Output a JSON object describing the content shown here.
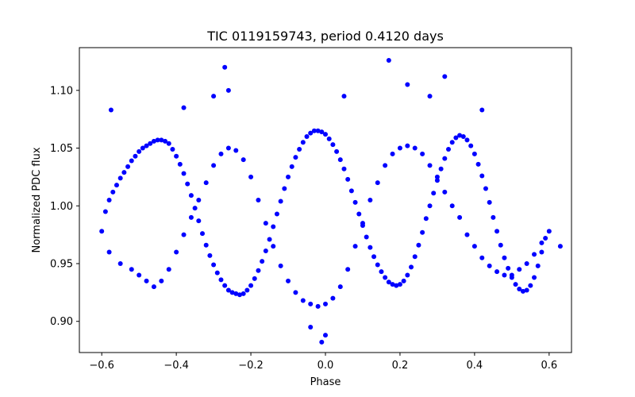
{
  "chart_data": {
    "type": "scatter",
    "title": "TIC 0119159743, period 0.4120 days",
    "xlabel": "Phase",
    "ylabel": "Normalized PDC flux",
    "xlim": [
      -0.66,
      0.66
    ],
    "ylim": [
      0.873,
      1.137
    ],
    "xticks": [
      -0.6,
      -0.4,
      -0.2,
      0.0,
      0.2,
      0.4,
      0.6
    ],
    "xtick_labels": [
      "−0.6",
      "−0.4",
      "−0.2",
      "0.0",
      "0.2",
      "0.4",
      "0.6"
    ],
    "yticks": [
      0.9,
      0.95,
      1.0,
      1.05,
      1.1
    ],
    "ytick_labels": [
      "0.90",
      "0.95",
      "1.00",
      "1.05",
      "1.10"
    ],
    "grid": false,
    "legend": "none",
    "marker_color": "#0000ff",
    "series": [
      {
        "points": [
          [
            -0.6,
            0.978
          ],
          [
            -0.59,
            0.995
          ],
          [
            -0.58,
            1.005
          ],
          [
            -0.57,
            1.012
          ],
          [
            -0.56,
            1.018
          ],
          [
            -0.55,
            1.024
          ],
          [
            -0.54,
            1.029
          ],
          [
            -0.53,
            1.034
          ],
          [
            -0.52,
            1.039
          ],
          [
            -0.51,
            1.043
          ],
          [
            -0.5,
            1.047
          ],
          [
            -0.49,
            1.05
          ],
          [
            -0.48,
            1.052
          ],
          [
            -0.47,
            1.054
          ],
          [
            -0.46,
            1.056
          ],
          [
            -0.45,
            1.057
          ],
          [
            -0.44,
            1.057
          ],
          [
            -0.43,
            1.056
          ],
          [
            -0.42,
            1.054
          ],
          [
            -0.41,
            1.049
          ],
          [
            -0.4,
            1.043
          ],
          [
            -0.39,
            1.036
          ],
          [
            -0.38,
            1.028
          ],
          [
            -0.37,
            1.019
          ],
          [
            -0.36,
            1.009
          ],
          [
            -0.35,
            0.998
          ],
          [
            -0.34,
            0.987
          ],
          [
            -0.33,
            0.976
          ],
          [
            -0.32,
            0.966
          ],
          [
            -0.31,
            0.957
          ],
          [
            -0.3,
            0.949
          ],
          [
            -0.29,
            0.942
          ],
          [
            -0.28,
            0.936
          ],
          [
            -0.27,
            0.931
          ],
          [
            -0.26,
            0.927
          ],
          [
            -0.25,
            0.925
          ],
          [
            -0.24,
            0.924
          ],
          [
            -0.23,
            0.923
          ],
          [
            -0.22,
            0.924
          ],
          [
            -0.21,
            0.927
          ],
          [
            -0.2,
            0.931
          ],
          [
            -0.19,
            0.937
          ],
          [
            -0.18,
            0.944
          ],
          [
            -0.17,
            0.952
          ],
          [
            -0.16,
            0.961
          ],
          [
            -0.15,
            0.971
          ],
          [
            -0.14,
            0.982
          ],
          [
            -0.13,
            0.993
          ],
          [
            -0.12,
            1.004
          ],
          [
            -0.11,
            1.015
          ],
          [
            -0.1,
            1.025
          ],
          [
            -0.09,
            1.034
          ],
          [
            -0.08,
            1.042
          ],
          [
            -0.07,
            1.049
          ],
          [
            -0.06,
            1.055
          ],
          [
            -0.05,
            1.06
          ],
          [
            -0.04,
            1.063
          ],
          [
            -0.03,
            1.065
          ],
          [
            -0.02,
            1.065
          ],
          [
            -0.01,
            1.064
          ],
          [
            0.0,
            1.062
          ],
          [
            0.01,
            1.058
          ],
          [
            0.02,
            1.053
          ],
          [
            0.03,
            1.047
          ],
          [
            0.04,
            1.04
          ],
          [
            0.05,
            1.032
          ],
          [
            0.06,
            1.023
          ],
          [
            0.07,
            1.013
          ],
          [
            0.08,
            1.003
          ],
          [
            0.09,
            0.993
          ],
          [
            0.1,
            0.983
          ],
          [
            0.11,
            0.973
          ],
          [
            0.12,
            0.964
          ],
          [
            0.13,
            0.956
          ],
          [
            0.14,
            0.949
          ],
          [
            0.15,
            0.943
          ],
          [
            0.16,
            0.938
          ],
          [
            0.17,
            0.934
          ],
          [
            0.18,
            0.932
          ],
          [
            0.19,
            0.931
          ],
          [
            0.2,
            0.932
          ],
          [
            0.21,
            0.935
          ],
          [
            0.22,
            0.94
          ],
          [
            0.23,
            0.947
          ],
          [
            0.24,
            0.956
          ],
          [
            0.25,
            0.966
          ],
          [
            0.26,
            0.977
          ],
          [
            0.27,
            0.989
          ],
          [
            0.28,
            1.0
          ],
          [
            0.29,
            1.011
          ],
          [
            0.3,
            1.022
          ],
          [
            0.31,
            1.032
          ],
          [
            0.32,
            1.041
          ],
          [
            0.33,
            1.049
          ],
          [
            0.34,
            1.055
          ],
          [
            0.35,
            1.059
          ],
          [
            0.36,
            1.061
          ],
          [
            0.37,
            1.06
          ],
          [
            0.38,
            1.057
          ],
          [
            0.39,
            1.052
          ],
          [
            0.4,
            1.045
          ],
          [
            0.41,
            1.036
          ],
          [
            0.42,
            1.026
          ],
          [
            0.43,
            1.015
          ],
          [
            0.44,
            1.003
          ],
          [
            0.45,
            0.99
          ],
          [
            0.46,
            0.978
          ],
          [
            0.47,
            0.966
          ],
          [
            0.48,
            0.955
          ],
          [
            0.49,
            0.946
          ],
          [
            0.5,
            0.938
          ],
          [
            0.51,
            0.932
          ],
          [
            0.52,
            0.928
          ],
          [
            0.53,
            0.926
          ],
          [
            0.54,
            0.927
          ],
          [
            0.55,
            0.931
          ],
          [
            0.56,
            0.938
          ],
          [
            0.57,
            0.948
          ],
          [
            0.58,
            0.96
          ],
          [
            0.59,
            0.972
          ],
          [
            0.6,
            0.978
          ],
          [
            -0.58,
            0.96
          ],
          [
            -0.55,
            0.95
          ],
          [
            -0.52,
            0.945
          ],
          [
            -0.5,
            0.94
          ],
          [
            -0.48,
            0.935
          ],
          [
            -0.46,
            0.93
          ],
          [
            -0.44,
            0.935
          ],
          [
            -0.42,
            0.945
          ],
          [
            -0.4,
            0.96
          ],
          [
            -0.38,
            0.975
          ],
          [
            -0.36,
            0.99
          ],
          [
            -0.34,
            1.005
          ],
          [
            -0.32,
            1.02
          ],
          [
            -0.3,
            1.035
          ],
          [
            -0.28,
            1.045
          ],
          [
            -0.26,
            1.05
          ],
          [
            -0.24,
            1.048
          ],
          [
            -0.22,
            1.04
          ],
          [
            -0.2,
            1.025
          ],
          [
            -0.18,
            1.005
          ],
          [
            -0.16,
            0.985
          ],
          [
            -0.14,
            0.965
          ],
          [
            -0.12,
            0.948
          ],
          [
            -0.1,
            0.935
          ],
          [
            -0.08,
            0.925
          ],
          [
            -0.06,
            0.918
          ],
          [
            -0.04,
            0.915
          ],
          [
            -0.02,
            0.913
          ],
          [
            0.0,
            0.915
          ],
          [
            0.02,
            0.92
          ],
          [
            0.04,
            0.93
          ],
          [
            0.06,
            0.945
          ],
          [
            0.08,
            0.965
          ],
          [
            0.1,
            0.985
          ],
          [
            0.12,
            1.005
          ],
          [
            0.14,
            1.02
          ],
          [
            0.16,
            1.035
          ],
          [
            0.18,
            1.045
          ],
          [
            0.2,
            1.05
          ],
          [
            0.22,
            1.052
          ],
          [
            0.24,
            1.05
          ],
          [
            0.26,
            1.045
          ],
          [
            0.28,
            1.035
          ],
          [
            0.3,
            1.025
          ],
          [
            0.32,
            1.012
          ],
          [
            0.34,
            1.0
          ],
          [
            0.36,
            0.99
          ],
          [
            0.38,
            0.975
          ],
          [
            0.4,
            0.965
          ],
          [
            0.42,
            0.955
          ],
          [
            0.44,
            0.948
          ],
          [
            0.46,
            0.943
          ],
          [
            0.48,
            0.94
          ],
          [
            0.5,
            0.94
          ],
          [
            0.52,
            0.945
          ],
          [
            0.54,
            0.95
          ],
          [
            0.56,
            0.958
          ],
          [
            0.58,
            0.968
          ],
          [
            -0.575,
            1.083
          ],
          [
            -0.27,
            1.12
          ],
          [
            -0.26,
            1.1
          ],
          [
            -0.38,
            1.085
          ],
          [
            -0.3,
            1.095
          ],
          [
            0.17,
            1.126
          ],
          [
            0.22,
            1.105
          ],
          [
            0.32,
            1.112
          ],
          [
            0.28,
            1.095
          ],
          [
            0.42,
            1.083
          ],
          [
            0.05,
            1.095
          ],
          [
            -0.01,
            0.882
          ],
          [
            0.0,
            0.888
          ],
          [
            -0.04,
            0.895
          ],
          [
            0.63,
            0.965
          ]
        ]
      }
    ]
  }
}
